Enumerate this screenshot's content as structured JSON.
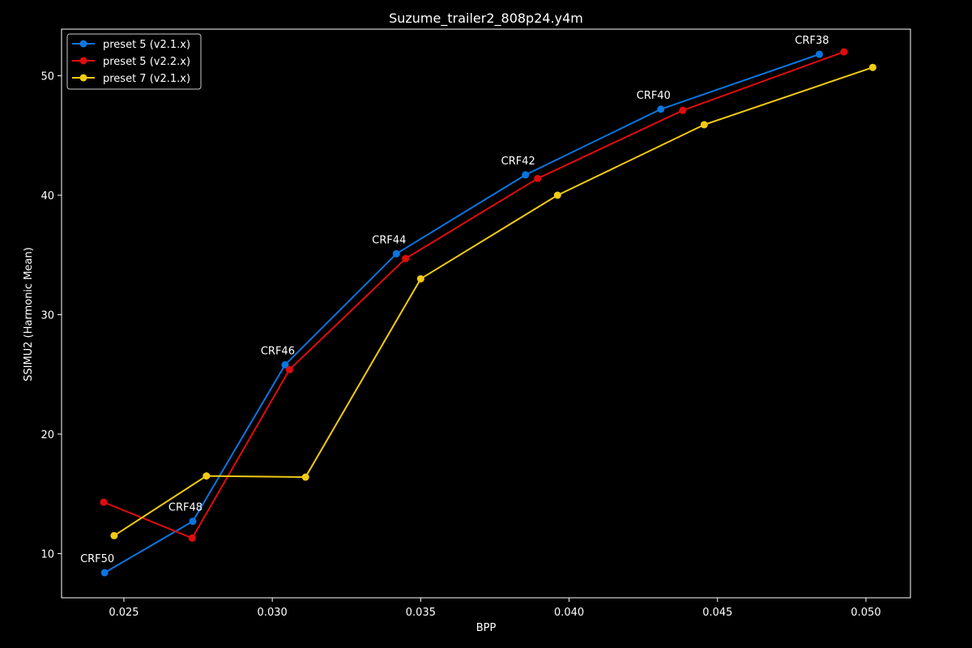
{
  "chart_data": {
    "type": "line",
    "title": "Suzume_trailer2_808p24.y4m",
    "xlabel": "BPP",
    "ylabel": "SSIMU2 (Harmonic Mean)",
    "xlim": [
      0.0229,
      0.0515
    ],
    "ylim": [
      6.3,
      53.9
    ],
    "x_ticks": [
      0.025,
      0.03,
      0.035,
      0.04,
      0.045,
      0.05
    ],
    "x_tick_labels": [
      "0.025",
      "0.030",
      "0.035",
      "0.040",
      "0.045",
      "0.050"
    ],
    "y_ticks": [
      10,
      20,
      30,
      40,
      50
    ],
    "y_tick_labels": [
      "10",
      "20",
      "30",
      "40",
      "50"
    ],
    "grid": false,
    "legend_position": "top-left",
    "series": [
      {
        "name": "preset 5 (v2.1.x)",
        "color": "#0a75e0",
        "points": [
          {
            "x": 0.02435,
            "y": 8.4
          },
          {
            "x": 0.02732,
            "y": 12.7
          },
          {
            "x": 0.03043,
            "y": 25.8
          },
          {
            "x": 0.03418,
            "y": 35.1
          },
          {
            "x": 0.03853,
            "y": 41.7
          },
          {
            "x": 0.04309,
            "y": 47.2
          },
          {
            "x": 0.04843,
            "y": 51.8
          }
        ]
      },
      {
        "name": "preset 5 (v2.2.x)",
        "color": "#e00c0c",
        "points": [
          {
            "x": 0.02432,
            "y": 14.3
          },
          {
            "x": 0.0273,
            "y": 11.3
          },
          {
            "x": 0.03058,
            "y": 25.4
          },
          {
            "x": 0.03449,
            "y": 34.7
          },
          {
            "x": 0.03894,
            "y": 41.4
          },
          {
            "x": 0.04383,
            "y": 47.1
          },
          {
            "x": 0.04926,
            "y": 52.0
          }
        ]
      },
      {
        "name": "preset 7 (v2.1.x)",
        "color": "#f2cb12",
        "points": [
          {
            "x": 0.02467,
            "y": 11.5
          },
          {
            "x": 0.02778,
            "y": 16.5
          },
          {
            "x": 0.03112,
            "y": 16.4
          },
          {
            "x": 0.035,
            "y": 33.0
          },
          {
            "x": 0.03961,
            "y": 40.0
          },
          {
            "x": 0.04455,
            "y": 45.9
          },
          {
            "x": 0.05023,
            "y": 50.7
          }
        ]
      }
    ],
    "annotations": [
      {
        "text": "CRF50",
        "x": 0.02435,
        "y": 8.4
      },
      {
        "text": "CRF48",
        "x": 0.02732,
        "y": 12.7
      },
      {
        "text": "CRF46",
        "x": 0.03043,
        "y": 25.8
      },
      {
        "text": "CRF44",
        "x": 0.03418,
        "y": 35.1
      },
      {
        "text": "CRF42",
        "x": 0.03853,
        "y": 41.7
      },
      {
        "text": "CRF40",
        "x": 0.04309,
        "y": 47.2
      },
      {
        "text": "CRF38",
        "x": 0.04843,
        "y": 51.8
      }
    ]
  }
}
